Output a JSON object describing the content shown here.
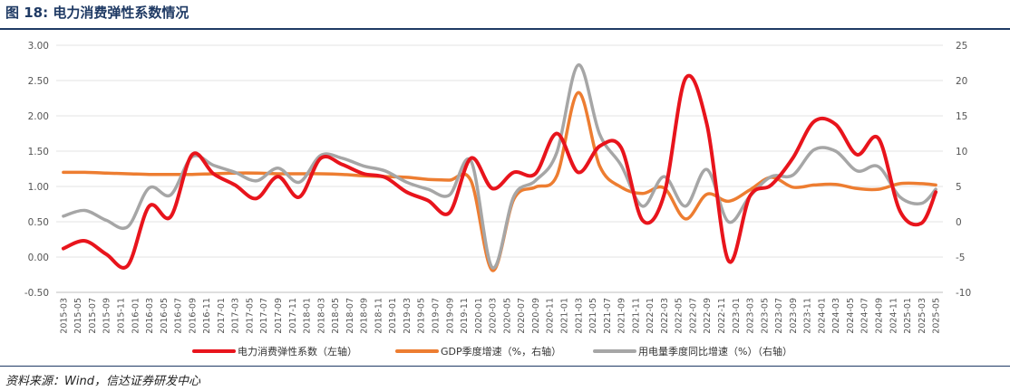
{
  "figure": {
    "title": "图 18:  电力消费弹性系数情况",
    "source": "资料来源：Wind，信达证券研发中心"
  },
  "colors": {
    "elasticity": "#e8141c",
    "gdp": "#ed7d31",
    "power": "#a6a6a6",
    "title": "#1f3a64"
  },
  "chart_data": {
    "type": "line",
    "x": [
      "2015-03",
      "2015-05",
      "2015-07",
      "2015-09",
      "2015-11",
      "2016-01",
      "2016-03",
      "2016-05",
      "2016-07",
      "2016-09",
      "2016-11",
      "2017-01",
      "2017-03",
      "2017-05",
      "2017-07",
      "2017-09",
      "2017-11",
      "2018-01",
      "2018-03",
      "2018-05",
      "2018-07",
      "2018-09",
      "2018-11",
      "2019-01",
      "2019-03",
      "2019-05",
      "2019-07",
      "2019-09",
      "2019-11",
      "2020-01",
      "2020-03",
      "2020-05",
      "2020-07",
      "2020-09",
      "2020-11",
      "2021-01",
      "2021-03",
      "2021-05",
      "2021-07",
      "2021-09",
      "2021-11",
      "2022-01",
      "2022-03",
      "2022-05",
      "2022-07",
      "2022-09",
      "2022-11",
      "2023-01",
      "2023-03",
      "2023-05",
      "2023-07",
      "2023-09",
      "2023-11",
      "2024-01",
      "2024-03",
      "2024-05",
      "2024-07",
      "2024-09",
      "2024-11",
      "2025-01",
      "2025-03",
      "2025-05"
    ],
    "y_left": {
      "min": -0.5,
      "max": 3.0,
      "step": 0.5,
      "ticks": [
        "-0.50",
        "0.00",
        "0.50",
        "1.00",
        "1.50",
        "2.00",
        "2.50",
        "3.00"
      ]
    },
    "y_right": {
      "min": -10,
      "max": 25,
      "step": 5,
      "ticks": [
        "-10",
        "-5",
        "0",
        "5",
        "10",
        "15",
        "20",
        "25"
      ]
    },
    "legend_position": "bottom",
    "series": [
      {
        "name": "电力消费弹性系数（左轴）",
        "axis": "left",
        "color": "#e8141c",
        "points": [
          [
            "2015-03",
            0.12
          ],
          [
            "2015-06",
            0.23
          ],
          [
            "2015-09",
            0.04
          ],
          [
            "2015-12",
            -0.12
          ],
          [
            "2016-03",
            0.72
          ],
          [
            "2016-06",
            0.57
          ],
          [
            "2016-09",
            1.45
          ],
          [
            "2016-12",
            1.18
          ],
          [
            "2017-03",
            1.02
          ],
          [
            "2017-06",
            0.83
          ],
          [
            "2017-09",
            1.14
          ],
          [
            "2017-12",
            0.85
          ],
          [
            "2018-03",
            1.4
          ],
          [
            "2018-06",
            1.31
          ],
          [
            "2018-09",
            1.18
          ],
          [
            "2018-12",
            1.13
          ],
          [
            "2019-03",
            0.92
          ],
          [
            "2019-06",
            0.8
          ],
          [
            "2019-09",
            0.63
          ],
          [
            "2019-12",
            1.4
          ],
          [
            "2020-03",
            0.97
          ],
          [
            "2020-06",
            1.2
          ],
          [
            "2020-09",
            1.18
          ],
          [
            "2020-12",
            1.75
          ],
          [
            "2021-03",
            1.2
          ],
          [
            "2021-06",
            1.57
          ],
          [
            "2021-09",
            1.55
          ],
          [
            "2021-12",
            0.52
          ],
          [
            "2022-03",
            0.88
          ],
          [
            "2022-06",
            2.53
          ],
          [
            "2022-09",
            1.88
          ],
          [
            "2022-12",
            -0.05
          ],
          [
            "2023-03",
            0.86
          ],
          [
            "2023-06",
            1.02
          ],
          [
            "2023-09",
            1.4
          ],
          [
            "2023-12",
            1.92
          ],
          [
            "2024-03",
            1.88
          ],
          [
            "2024-06",
            1.45
          ],
          [
            "2024-09",
            1.68
          ],
          [
            "2024-12",
            0.65
          ],
          [
            "2025-03",
            0.48
          ],
          [
            "2025-06",
            0.92
          ]
        ]
      },
      {
        "name": "GDP季度增速（%，右轴）",
        "axis": "right",
        "color": "#ed7d31",
        "points": [
          [
            "2015-03",
            7.0
          ],
          [
            "2015-06",
            7.0
          ],
          [
            "2015-09",
            6.9
          ],
          [
            "2015-12",
            6.8
          ],
          [
            "2016-03",
            6.7
          ],
          [
            "2016-06",
            6.7
          ],
          [
            "2016-09",
            6.7
          ],
          [
            "2016-12",
            6.8
          ],
          [
            "2017-03",
            6.9
          ],
          [
            "2017-06",
            6.9
          ],
          [
            "2017-09",
            6.8
          ],
          [
            "2017-12",
            6.8
          ],
          [
            "2018-03",
            6.8
          ],
          [
            "2018-06",
            6.7
          ],
          [
            "2018-09",
            6.5
          ],
          [
            "2018-12",
            6.4
          ],
          [
            "2019-03",
            6.3
          ],
          [
            "2019-06",
            6.0
          ],
          [
            "2019-09",
            5.9
          ],
          [
            "2019-12",
            5.8
          ],
          [
            "2020-03",
            -6.9
          ],
          [
            "2020-06",
            3.2
          ],
          [
            "2020-09",
            4.9
          ],
          [
            "2020-12",
            6.5
          ],
          [
            "2021-03",
            18.3
          ],
          [
            "2021-06",
            7.9
          ],
          [
            "2021-09",
            4.9
          ],
          [
            "2021-12",
            4.0
          ],
          [
            "2022-03",
            4.8
          ],
          [
            "2022-06",
            0.4
          ],
          [
            "2022-09",
            3.9
          ],
          [
            "2022-12",
            2.9
          ],
          [
            "2023-03",
            4.5
          ],
          [
            "2023-06",
            6.3
          ],
          [
            "2023-09",
            4.9
          ],
          [
            "2023-12",
            5.2
          ],
          [
            "2024-03",
            5.3
          ],
          [
            "2024-06",
            4.7
          ],
          [
            "2024-09",
            4.6
          ],
          [
            "2024-12",
            5.4
          ],
          [
            "2025-03",
            5.4
          ],
          [
            "2025-06",
            5.2
          ]
        ]
      },
      {
        "name": "用电量季度同比增速（%）（右轴）",
        "axis": "right",
        "color": "#a6a6a6",
        "points": [
          [
            "2015-03",
            0.8
          ],
          [
            "2015-06",
            1.6
          ],
          [
            "2015-09",
            0.2
          ],
          [
            "2015-12",
            -0.7
          ],
          [
            "2016-03",
            4.8
          ],
          [
            "2016-06",
            3.8
          ],
          [
            "2016-09",
            9.2
          ],
          [
            "2016-12",
            8.0
          ],
          [
            "2017-03",
            7.0
          ],
          [
            "2017-06",
            5.8
          ],
          [
            "2017-09",
            7.6
          ],
          [
            "2017-12",
            5.6
          ],
          [
            "2018-03",
            9.4
          ],
          [
            "2018-06",
            9.0
          ],
          [
            "2018-09",
            7.9
          ],
          [
            "2018-12",
            7.2
          ],
          [
            "2019-03",
            5.6
          ],
          [
            "2019-06",
            4.6
          ],
          [
            "2019-09",
            3.8
          ],
          [
            "2019-12",
            8.6
          ],
          [
            "2020-03",
            -6.5
          ],
          [
            "2020-06",
            3.6
          ],
          [
            "2020-09",
            5.8
          ],
          [
            "2020-12",
            9.8
          ],
          [
            "2021-03",
            22.2
          ],
          [
            "2021-06",
            12.4
          ],
          [
            "2021-09",
            8.0
          ],
          [
            "2021-12",
            2.2
          ],
          [
            "2022-03",
            6.4
          ],
          [
            "2022-06",
            2.2
          ],
          [
            "2022-09",
            7.4
          ],
          [
            "2022-12",
            0.0
          ],
          [
            "2023-03",
            3.6
          ],
          [
            "2023-06",
            6.4
          ],
          [
            "2023-09",
            6.6
          ],
          [
            "2023-12",
            10.2
          ],
          [
            "2024-03",
            10.0
          ],
          [
            "2024-06",
            7.2
          ],
          [
            "2024-09",
            7.8
          ],
          [
            "2024-12",
            3.5
          ],
          [
            "2025-03",
            2.6
          ],
          [
            "2025-06",
            4.6
          ]
        ]
      }
    ]
  }
}
